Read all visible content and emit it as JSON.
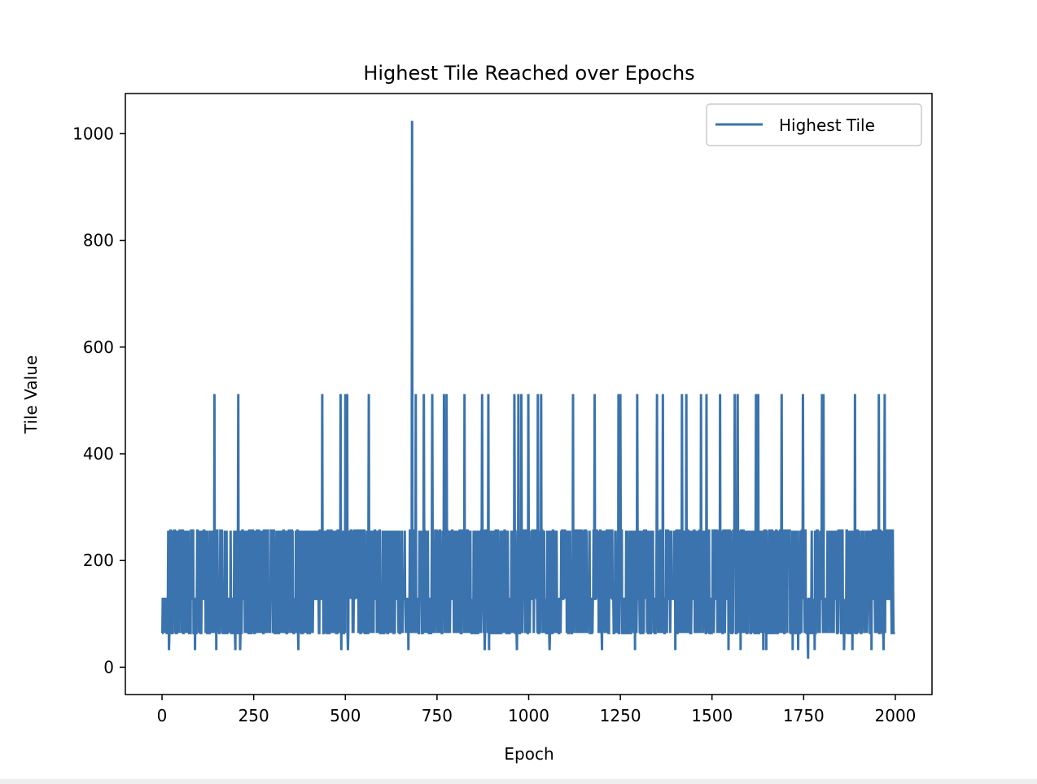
{
  "chart_data": {
    "type": "line",
    "title": "Highest Tile Reached over Epochs",
    "xlabel": "Epoch",
    "ylabel": "Tile Value",
    "xlim": [
      -100,
      2100
    ],
    "ylim": [
      -51.2,
      1075.2
    ],
    "xticks": [
      0,
      250,
      500,
      750,
      1000,
      1250,
      1500,
      1750,
      2000
    ],
    "yticks": [
      0,
      200,
      400,
      600,
      800,
      1000
    ],
    "grid": false,
    "legend": {
      "position": "top-right",
      "entries": [
        "Highest Tile"
      ]
    },
    "series": [
      {
        "name": "Highest Tile",
        "color": "#3a73ad",
        "x_start": 0,
        "x_step": 1,
        "pattern": {
          "n": 2000,
          "levels": [
            64,
            128,
            256
          ],
          "level_weights": [
            0.34,
            0.33,
            0.33
          ],
          "seed": 20482048
        },
        "overrides": [
          {
            "x": 19,
            "y": 32
          },
          {
            "x": 90,
            "y": 32
          },
          {
            "x": 143,
            "y": 512
          },
          {
            "x": 148,
            "y": 32
          },
          {
            "x": 200,
            "y": 32
          },
          {
            "x": 208,
            "y": 512
          },
          {
            "x": 213,
            "y": 32
          },
          {
            "x": 372,
            "y": 32
          },
          {
            "x": 437,
            "y": 512
          },
          {
            "x": 487,
            "y": 512
          },
          {
            "x": 489,
            "y": 32
          },
          {
            "x": 500,
            "y": 512
          },
          {
            "x": 505,
            "y": 512
          },
          {
            "x": 507,
            "y": 32
          },
          {
            "x": 564,
            "y": 512
          },
          {
            "x": 672,
            "y": 32
          },
          {
            "x": 682,
            "y": 1024
          },
          {
            "x": 692,
            "y": 512
          },
          {
            "x": 714,
            "y": 512
          },
          {
            "x": 737,
            "y": 512
          },
          {
            "x": 769,
            "y": 512
          },
          {
            "x": 776,
            "y": 512
          },
          {
            "x": 825,
            "y": 512
          },
          {
            "x": 873,
            "y": 512
          },
          {
            "x": 880,
            "y": 32
          },
          {
            "x": 890,
            "y": 512
          },
          {
            "x": 892,
            "y": 32
          },
          {
            "x": 961,
            "y": 512
          },
          {
            "x": 968,
            "y": 32
          },
          {
            "x": 972,
            "y": 512
          },
          {
            "x": 980,
            "y": 512
          },
          {
            "x": 999,
            "y": 512
          },
          {
            "x": 1025,
            "y": 512
          },
          {
            "x": 1034,
            "y": 512
          },
          {
            "x": 1057,
            "y": 32
          },
          {
            "x": 1121,
            "y": 512
          },
          {
            "x": 1180,
            "y": 512
          },
          {
            "x": 1200,
            "y": 32
          },
          {
            "x": 1245,
            "y": 512
          },
          {
            "x": 1250,
            "y": 512
          },
          {
            "x": 1290,
            "y": 32
          },
          {
            "x": 1296,
            "y": 512
          },
          {
            "x": 1350,
            "y": 512
          },
          {
            "x": 1366,
            "y": 512
          },
          {
            "x": 1400,
            "y": 32
          },
          {
            "x": 1418,
            "y": 512
          },
          {
            "x": 1430,
            "y": 512
          },
          {
            "x": 1470,
            "y": 512
          },
          {
            "x": 1485,
            "y": 512
          },
          {
            "x": 1522,
            "y": 512
          },
          {
            "x": 1545,
            "y": 32
          },
          {
            "x": 1562,
            "y": 512
          },
          {
            "x": 1570,
            "y": 512
          },
          {
            "x": 1578,
            "y": 32
          },
          {
            "x": 1620,
            "y": 512
          },
          {
            "x": 1626,
            "y": 512
          },
          {
            "x": 1640,
            "y": 32
          },
          {
            "x": 1648,
            "y": 32
          },
          {
            "x": 1690,
            "y": 512
          },
          {
            "x": 1720,
            "y": 32
          },
          {
            "x": 1735,
            "y": 32
          },
          {
            "x": 1748,
            "y": 512
          },
          {
            "x": 1762,
            "y": 16
          },
          {
            "x": 1780,
            "y": 32
          },
          {
            "x": 1800,
            "y": 512
          },
          {
            "x": 1804,
            "y": 512
          },
          {
            "x": 1860,
            "y": 32
          },
          {
            "x": 1883,
            "y": 32
          },
          {
            "x": 1890,
            "y": 512
          },
          {
            "x": 1935,
            "y": 32
          },
          {
            "x": 1955,
            "y": 512
          },
          {
            "x": 1968,
            "y": 32
          },
          {
            "x": 1971,
            "y": 512
          }
        ]
      }
    ]
  }
}
